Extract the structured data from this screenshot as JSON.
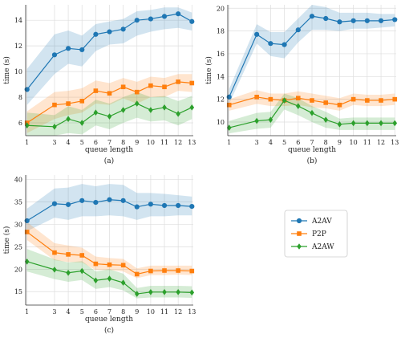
{
  "chart_data": [
    {
      "id": "a",
      "type": "line",
      "caption": "(a)",
      "xlabel": "queue length",
      "ylabel": "time (s)",
      "x": [
        1,
        3,
        4,
        5,
        6,
        7,
        8,
        9,
        10,
        11,
        12,
        13
      ],
      "xticks": [
        "1",
        "3",
        "4",
        "5",
        "6",
        "7",
        "8",
        "9",
        "10",
        "11",
        "12",
        "13"
      ],
      "yticks": [
        "6",
        "8",
        "10",
        "12",
        "14"
      ],
      "ytick_values": [
        6,
        8,
        10,
        12,
        14
      ],
      "xlim": [
        0.9,
        13.1
      ],
      "ylim": [
        5.0,
        15.2
      ],
      "grid": true,
      "series": [
        {
          "name": "A2AV",
          "values": [
            8.6,
            11.3,
            11.8,
            11.7,
            12.9,
            13.1,
            13.3,
            14.0,
            14.1,
            14.3,
            14.5,
            13.9
          ],
          "lower": [
            7.4,
            9.8,
            10.6,
            10.4,
            11.6,
            12.1,
            12.2,
            12.8,
            13.1,
            13.3,
            13.4,
            13.2
          ],
          "upper": [
            10.2,
            12.9,
            13.2,
            12.8,
            13.7,
            13.9,
            14.1,
            14.7,
            14.8,
            15.0,
            15.0,
            14.6
          ]
        },
        {
          "name": "P2P",
          "values": [
            6.0,
            7.4,
            7.5,
            7.7,
            8.5,
            8.3,
            8.8,
            8.4,
            8.9,
            8.8,
            9.2,
            9.1
          ],
          "lower": [
            5.2,
            6.3,
            6.6,
            6.8,
            7.5,
            7.4,
            7.9,
            7.5,
            8.0,
            8.0,
            8.5,
            8.4
          ],
          "upper": [
            6.9,
            8.4,
            8.5,
            8.7,
            9.3,
            9.1,
            9.5,
            9.2,
            9.6,
            9.5,
            9.8,
            9.8
          ]
        },
        {
          "name": "A2AW",
          "values": [
            5.8,
            5.7,
            6.3,
            6.0,
            6.8,
            6.5,
            7.0,
            7.5,
            7.0,
            7.2,
            6.7,
            7.2
          ],
          "lower": [
            5.0,
            5.0,
            5.2,
            5.1,
            5.8,
            5.5,
            6.0,
            6.4,
            6.1,
            6.2,
            5.8,
            6.3
          ],
          "upper": [
            6.8,
            6.6,
            7.3,
            7.0,
            7.8,
            7.5,
            8.0,
            8.4,
            8.0,
            8.1,
            7.7,
            8.1
          ]
        }
      ]
    },
    {
      "id": "b",
      "type": "line",
      "caption": "(b)",
      "xlabel": "queue length",
      "ylabel": "time (s)",
      "x": [
        1,
        3,
        4,
        5,
        6,
        7,
        8,
        9,
        10,
        11,
        12,
        13
      ],
      "xticks": [
        "1",
        "3",
        "4",
        "5",
        "6",
        "7",
        "8",
        "9",
        "10",
        "11",
        "12",
        "13"
      ],
      "yticks": [
        "10",
        "12",
        "14",
        "16",
        "18",
        "20"
      ],
      "ytick_values": [
        10,
        12,
        14,
        16,
        18,
        20
      ],
      "xlim": [
        0.9,
        13.1
      ],
      "ylim": [
        8.8,
        20.3
      ],
      "grid": true,
      "series": [
        {
          "name": "A2AV",
          "values": [
            12.2,
            17.7,
            16.9,
            16.8,
            18.1,
            19.3,
            19.1,
            18.8,
            18.9,
            18.9,
            18.9,
            19.0
          ],
          "lower": [
            11.6,
            16.9,
            15.8,
            15.6,
            17.0,
            18.1,
            18.1,
            18.0,
            18.2,
            18.2,
            18.3,
            18.4
          ],
          "upper": [
            12.9,
            18.6,
            17.9,
            17.9,
            19.1,
            20.3,
            20.1,
            19.6,
            19.6,
            19.6,
            19.5,
            19.5
          ]
        },
        {
          "name": "P2P",
          "values": [
            11.5,
            12.2,
            12.0,
            11.9,
            12.1,
            11.9,
            11.7,
            11.5,
            12.0,
            11.9,
            11.9,
            12.0
          ],
          "lower": [
            11.0,
            11.6,
            11.4,
            11.4,
            11.5,
            11.3,
            11.2,
            11.0,
            11.5,
            11.4,
            11.4,
            11.5
          ],
          "upper": [
            12.0,
            12.8,
            12.5,
            12.5,
            12.7,
            12.5,
            12.3,
            12.1,
            12.5,
            12.4,
            12.4,
            12.5
          ]
        },
        {
          "name": "A2AW",
          "values": [
            9.5,
            10.1,
            10.2,
            11.9,
            11.4,
            10.8,
            10.2,
            9.8,
            9.9,
            9.9,
            9.9,
            9.9
          ],
          "lower": [
            9.0,
            9.4,
            9.5,
            11.1,
            10.6,
            10.0,
            9.5,
            9.3,
            9.3,
            9.3,
            9.3,
            9.3
          ],
          "upper": [
            10.1,
            10.8,
            10.9,
            12.5,
            12.1,
            11.4,
            10.9,
            10.3,
            10.4,
            10.4,
            10.4,
            10.4
          ]
        }
      ]
    },
    {
      "id": "c",
      "type": "line",
      "caption": "(c)",
      "xlabel": "queue length",
      "ylabel": "time (s)",
      "x": [
        1,
        3,
        4,
        5,
        6,
        7,
        8,
        9,
        10,
        11,
        12,
        13
      ],
      "xticks": [
        "1",
        "3",
        "4",
        "5",
        "6",
        "7",
        "8",
        "9",
        "10",
        "11",
        "12",
        "13"
      ],
      "yticks": [
        "15",
        "20",
        "25",
        "30",
        "35",
        "40"
      ],
      "ytick_values": [
        15,
        20,
        25,
        30,
        35,
        40
      ],
      "xlim": [
        0.9,
        13.1
      ],
      "ylim": [
        12.0,
        41.0
      ],
      "grid": true,
      "series": [
        {
          "name": "A2AV",
          "values": [
            30.8,
            34.6,
            34.4,
            35.3,
            34.9,
            35.5,
            35.3,
            33.9,
            34.5,
            34.2,
            34.2,
            34.0
          ],
          "lower": [
            28.5,
            31.5,
            31.0,
            31.8,
            31.8,
            32.0,
            31.8,
            31.0,
            31.8,
            31.8,
            32.0,
            32.0
          ],
          "upper": [
            33.5,
            38.0,
            38.2,
            39.0,
            38.5,
            39.0,
            38.8,
            37.0,
            37.0,
            36.8,
            36.5,
            36.2
          ]
        },
        {
          "name": "P2P",
          "values": [
            28.3,
            23.7,
            23.3,
            23.1,
            21.2,
            21.0,
            20.9,
            18.9,
            19.6,
            19.7,
            19.7,
            19.6
          ],
          "lower": [
            26.5,
            22.0,
            21.6,
            21.5,
            19.8,
            19.8,
            19.5,
            18.0,
            18.7,
            18.7,
            18.8,
            18.7
          ],
          "upper": [
            30.5,
            25.8,
            25.3,
            24.8,
            22.8,
            22.5,
            22.3,
            20.2,
            20.8,
            20.8,
            20.8,
            20.8
          ]
        },
        {
          "name": "A2AW",
          "values": [
            21.7,
            19.9,
            19.2,
            19.6,
            17.5,
            17.9,
            17.0,
            14.5,
            14.9,
            14.9,
            14.9,
            14.8
          ],
          "lower": [
            19.5,
            17.8,
            17.2,
            17.6,
            15.6,
            16.0,
            15.3,
            13.5,
            13.7,
            13.7,
            13.7,
            13.6
          ],
          "upper": [
            24.5,
            22.2,
            21.5,
            21.8,
            19.5,
            20.0,
            19.0,
            15.8,
            16.3,
            16.3,
            16.3,
            16.2
          ]
        }
      ]
    }
  ],
  "legend": {
    "placement": "right of panel (c)",
    "entries": [
      {
        "name": "A2AV",
        "marker": "circle",
        "color": "#1f77b4"
      },
      {
        "name": "P2P",
        "marker": "square",
        "color": "#ff7f0e"
      },
      {
        "name": "A2AW",
        "marker": "diamond",
        "color": "#2ca02c"
      }
    ]
  },
  "colors": {
    "A2AV": "#1f77b4",
    "P2P": "#ff7f0e",
    "A2AW": "#2ca02c",
    "grid": "#dddddd",
    "axis": "#333333"
  }
}
